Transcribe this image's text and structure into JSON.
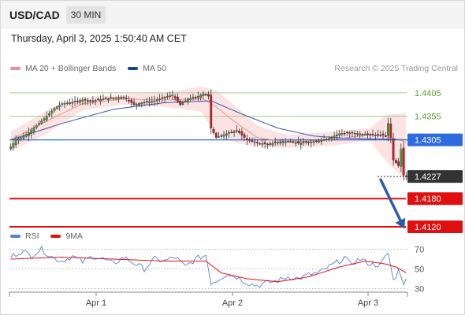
{
  "header": {
    "symbol": "USD/CAD",
    "timeframe": "30 MIN"
  },
  "subtitle": "Thursday, April 3, 2025 1:50:40 AM CET",
  "legend": {
    "main": [
      {
        "name": "MA 20 + Bollinger Bands",
        "color": "#f28c8c"
      },
      {
        "name": "MA 50",
        "color": "#1f3f8f"
      }
    ],
    "rsi": [
      {
        "name": "RSI",
        "color": "#5b7fd6"
      },
      {
        "name": "9MA",
        "color": "#e01010"
      }
    ]
  },
  "credit": "Research © 2025 Trading Central",
  "chart_data": {
    "type": "candlestick",
    "ylim": [
      1.4105,
      1.4445
    ],
    "x_ticks": [
      "Apr 1",
      "Apr 2",
      "Apr 3"
    ],
    "levels": [
      {
        "label": "1.4405",
        "value": 1.4405,
        "kind": "resistance",
        "color": "#a6c98a",
        "label_color": "#5a9e2e"
      },
      {
        "label": "1.4355",
        "value": 1.4355,
        "kind": "resistance",
        "color": "#a6c98a",
        "label_color": "#5a9e2e"
      },
      {
        "label": "1.4305",
        "value": 1.4305,
        "kind": "pivot",
        "color": "#2d6be0",
        "label_color": "#2d6be0"
      },
      {
        "label": "1.4227",
        "value": 1.4227,
        "kind": "last",
        "color": "#333333",
        "label_color": "#333333"
      },
      {
        "label": "1.4180",
        "value": 1.418,
        "kind": "support",
        "color": "#e01010",
        "label_color": "#e01010"
      },
      {
        "label": "1.4120",
        "value": 1.412,
        "kind": "support",
        "color": "#e01010",
        "label_color": "#e01010"
      }
    ],
    "arrow": {
      "from": 1.4227,
      "to": 1.412,
      "color": "#2b5ea8"
    },
    "price_anchors": [
      [
        0,
        1.429
      ],
      [
        2,
        1.4305
      ],
      [
        5,
        1.4312
      ],
      [
        8,
        1.4325
      ],
      [
        11,
        1.434
      ],
      [
        14,
        1.4355
      ],
      [
        17,
        1.4372
      ],
      [
        20,
        1.4382
      ],
      [
        24,
        1.4385
      ],
      [
        28,
        1.439
      ],
      [
        32,
        1.4388
      ],
      [
        36,
        1.4392
      ],
      [
        40,
        1.4394
      ],
      [
        44,
        1.4396
      ],
      [
        48,
        1.438
      ],
      [
        52,
        1.4385
      ],
      [
        56,
        1.4388
      ],
      [
        60,
        1.4396
      ],
      [
        63,
        1.44
      ],
      [
        66,
        1.438
      ],
      [
        69,
        1.4392
      ],
      [
        72,
        1.4395
      ],
      [
        75,
        1.4403
      ],
      [
        77,
        1.4398
      ],
      [
        78,
        1.433
      ],
      [
        80,
        1.431
      ],
      [
        84,
        1.4318
      ],
      [
        88,
        1.4325
      ],
      [
        92,
        1.4305
      ],
      [
        96,
        1.4298
      ],
      [
        100,
        1.4296
      ],
      [
        104,
        1.43
      ],
      [
        108,
        1.4302
      ],
      [
        112,
        1.4298
      ],
      [
        116,
        1.43
      ],
      [
        120,
        1.4303
      ],
      [
        124,
        1.4308
      ],
      [
        128,
        1.4318
      ],
      [
        132,
        1.432
      ],
      [
        136,
        1.4318
      ],
      [
        140,
        1.4315
      ],
      [
        144,
        1.4316
      ],
      [
        146,
        1.4314
      ],
      [
        147,
        1.434
      ],
      [
        148,
        1.431
      ],
      [
        149,
        1.4262
      ],
      [
        151,
        1.425
      ],
      [
        152,
        1.4285
      ],
      [
        153,
        1.423
      ],
      [
        154,
        1.4227
      ]
    ],
    "ma20_anchors": [
      [
        0,
        1.4305
      ],
      [
        14,
        1.4345
      ],
      [
        28,
        1.4382
      ],
      [
        44,
        1.4392
      ],
      [
        60,
        1.439
      ],
      [
        75,
        1.4392
      ],
      [
        80,
        1.4375
      ],
      [
        88,
        1.434
      ],
      [
        96,
        1.431
      ],
      [
        108,
        1.43
      ],
      [
        124,
        1.4305
      ],
      [
        140,
        1.4316
      ],
      [
        148,
        1.431
      ],
      [
        154,
        1.43
      ]
    ],
    "bb_upper_anchors": [
      [
        0,
        1.4322
      ],
      [
        14,
        1.4368
      ],
      [
        28,
        1.4395
      ],
      [
        44,
        1.4402
      ],
      [
        60,
        1.4405
      ],
      [
        74,
        1.4418
      ],
      [
        80,
        1.441
      ],
      [
        88,
        1.4375
      ],
      [
        96,
        1.4335
      ],
      [
        108,
        1.4315
      ],
      [
        124,
        1.4322
      ],
      [
        140,
        1.433
      ],
      [
        146,
        1.4358
      ],
      [
        154,
        1.4362
      ]
    ],
    "bb_lower_anchors": [
      [
        0,
        1.428
      ],
      [
        14,
        1.4318
      ],
      [
        28,
        1.4368
      ],
      [
        44,
        1.438
      ],
      [
        60,
        1.4375
      ],
      [
        74,
        1.4365
      ],
      [
        80,
        1.4315
      ],
      [
        88,
        1.4298
      ],
      [
        96,
        1.429
      ],
      [
        108,
        1.4288
      ],
      [
        124,
        1.4292
      ],
      [
        140,
        1.4303
      ],
      [
        146,
        1.426
      ],
      [
        154,
        1.4218
      ]
    ],
    "ma50_anchors": [
      [
        0,
        1.4305
      ],
      [
        20,
        1.434
      ],
      [
        40,
        1.437
      ],
      [
        60,
        1.4384
      ],
      [
        78,
        1.4388
      ],
      [
        90,
        1.436
      ],
      [
        104,
        1.433
      ],
      [
        118,
        1.4313
      ],
      [
        132,
        1.4308
      ],
      [
        146,
        1.4307
      ],
      [
        154,
        1.4305
      ]
    ],
    "rsi": {
      "ylim": [
        20,
        80
      ],
      "levels": [
        {
          "label": "70",
          "value": 70
        },
        {
          "label": "50",
          "value": 50
        },
        {
          "label": "30",
          "value": 30
        }
      ],
      "rsi_anchors": [
        [
          0,
          62
        ],
        [
          4,
          68
        ],
        [
          8,
          64
        ],
        [
          12,
          70
        ],
        [
          16,
          62
        ],
        [
          20,
          58
        ],
        [
          24,
          63
        ],
        [
          28,
          57
        ],
        [
          32,
          63
        ],
        [
          36,
          60
        ],
        [
          40,
          55
        ],
        [
          44,
          62
        ],
        [
          48,
          56
        ],
        [
          52,
          50
        ],
        [
          56,
          60
        ],
        [
          60,
          58
        ],
        [
          64,
          62
        ],
        [
          68,
          52
        ],
        [
          72,
          60
        ],
        [
          76,
          64
        ],
        [
          78,
          36
        ],
        [
          80,
          38
        ],
        [
          84,
          45
        ],
        [
          88,
          42
        ],
        [
          92,
          36
        ],
        [
          96,
          33
        ],
        [
          100,
          36
        ],
        [
          104,
          38
        ],
        [
          108,
          42
        ],
        [
          112,
          40
        ],
        [
          116,
          44
        ],
        [
          120,
          46
        ],
        [
          124,
          52
        ],
        [
          128,
          58
        ],
        [
          130,
          62
        ],
        [
          132,
          55
        ],
        [
          136,
          60
        ],
        [
          140,
          55
        ],
        [
          144,
          54
        ],
        [
          147,
          66
        ],
        [
          149,
          38
        ],
        [
          151,
          48
        ],
        [
          152,
          44
        ],
        [
          153,
          36
        ],
        [
          154,
          38
        ]
      ],
      "ma9_anchors": [
        [
          0,
          60
        ],
        [
          20,
          62
        ],
        [
          40,
          60
        ],
        [
          60,
          58
        ],
        [
          76,
          58
        ],
        [
          82,
          46
        ],
        [
          92,
          40
        ],
        [
          104,
          37
        ],
        [
          116,
          42
        ],
        [
          128,
          52
        ],
        [
          138,
          58
        ],
        [
          146,
          55
        ],
        [
          150,
          52
        ],
        [
          154,
          46
        ]
      ]
    }
  }
}
